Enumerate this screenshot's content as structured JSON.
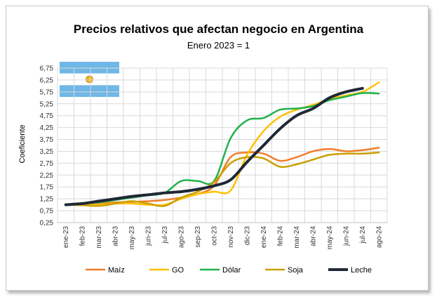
{
  "chart_data": {
    "type": "line",
    "title": "Precios relativos que afectan negocio en Argentina",
    "subtitle": "Enero 2023 = 1",
    "xlabel": "",
    "ylabel": "Coeficiente",
    "ylim": [
      0.25,
      6.75
    ],
    "yticks": [
      "0,25",
      "0,75",
      "1,25",
      "1,75",
      "2,25",
      "2,75",
      "3,25",
      "3,75",
      "4,25",
      "4,75",
      "5,25",
      "5,75",
      "6,25",
      "6,75"
    ],
    "grid": true,
    "legend": "bottom",
    "categories": [
      "ene-23",
      "feb-23",
      "mar-23",
      "abr-23",
      "may-23",
      "jun-23",
      "jul-23",
      "ago-23",
      "sep-23",
      "oct-23",
      "nov-23",
      "dic-23",
      "ene-24",
      "feb-24",
      "mar-24",
      "abr-24",
      "may-24",
      "jun-24",
      "jul-24",
      "ago-24"
    ],
    "series": [
      {
        "name": "Maíz",
        "color": "#f07d2a",
        "width": 2.5,
        "values": [
          1.0,
          1.02,
          1.05,
          1.1,
          1.12,
          1.15,
          1.2,
          1.3,
          1.45,
          1.8,
          3.0,
          3.2,
          3.15,
          2.85,
          3.0,
          3.25,
          3.35,
          3.25,
          3.3,
          3.4
        ]
      },
      {
        "name": "GO",
        "color": "#ffc000",
        "width": 2.5,
        "values": [
          1.0,
          1.0,
          1.0,
          1.05,
          1.05,
          1.0,
          1.0,
          1.25,
          1.45,
          1.55,
          1.6,
          3.1,
          4.1,
          4.7,
          5.0,
          5.2,
          5.45,
          5.6,
          5.75,
          6.15
        ]
      },
      {
        "name": "Dólar",
        "color": "#22b14c",
        "width": 2.5,
        "values": [
          1.0,
          1.05,
          1.1,
          1.2,
          1.3,
          1.4,
          1.5,
          2.0,
          2.0,
          2.0,
          3.8,
          4.55,
          4.65,
          5.0,
          5.05,
          5.15,
          5.4,
          5.55,
          5.7,
          5.68
        ]
      },
      {
        "name": "Soja",
        "color": "#c9a000",
        "width": 2.5,
        "values": [
          1.0,
          0.98,
          0.95,
          1.05,
          1.15,
          1.05,
          0.95,
          1.3,
          1.55,
          1.95,
          2.75,
          3.0,
          2.95,
          2.6,
          2.7,
          2.9,
          3.1,
          3.15,
          3.15,
          3.2
        ]
      },
      {
        "name": "Leche",
        "color": "#1f2836",
        "width": 4,
        "values": [
          1.0,
          1.05,
          1.15,
          1.25,
          1.35,
          1.42,
          1.5,
          1.55,
          1.65,
          1.8,
          2.05,
          2.8,
          3.5,
          4.2,
          4.75,
          5.05,
          5.5,
          5.75,
          5.9,
          null
        ]
      }
    ]
  },
  "flag": {
    "stripe_color": "#6fb7e6",
    "sun_color": "#f6b40e"
  }
}
